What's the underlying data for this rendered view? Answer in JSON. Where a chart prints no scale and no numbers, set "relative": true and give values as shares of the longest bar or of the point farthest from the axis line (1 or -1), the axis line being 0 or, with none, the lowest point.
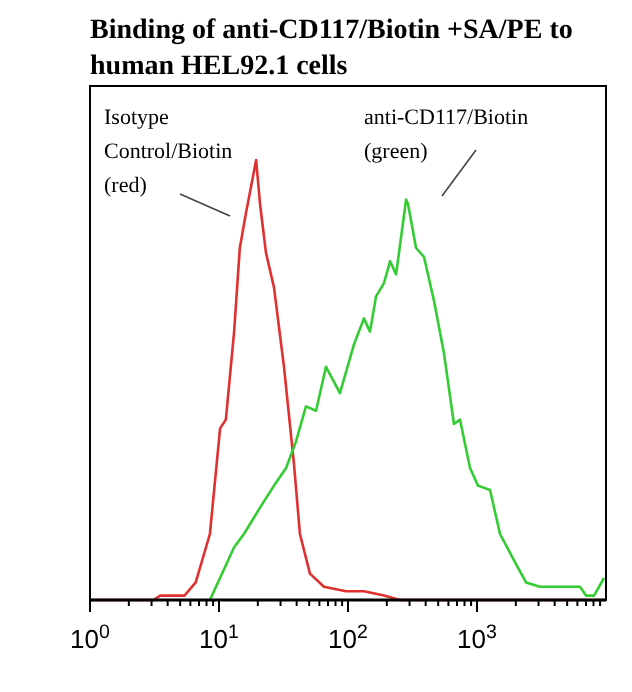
{
  "chart_data": {
    "type": "line",
    "title": "Binding of anti-CD117/Biotin +SA/PE to\nhuman HEL92.1 cells",
    "relative": true,
    "log": "x",
    "xlim": [
      1,
      10000
    ],
    "xticks": [
      {
        "value": 1,
        "label": "10$^{0}$"
      },
      {
        "value": 2,
        "label": null
      },
      {
        "value": 3,
        "label": null
      },
      {
        "value": 4,
        "label": null
      },
      {
        "value": 5,
        "label": null
      },
      {
        "value": 6,
        "label": null
      },
      {
        "value": 7,
        "label": null
      },
      {
        "value": 8,
        "label": null
      },
      {
        "value": 9,
        "label": null
      },
      {
        "value": 10,
        "label": "10$^{1}$"
      },
      {
        "value": 20,
        "label": null
      },
      {
        "value": 30,
        "label": null
      },
      {
        "value": 40,
        "label": null
      },
      {
        "value": 50,
        "label": null
      },
      {
        "value": 60,
        "label": null
      },
      {
        "value": 70,
        "label": null
      },
      {
        "value": 80,
        "label": null
      },
      {
        "value": 90,
        "label": null
      },
      {
        "value": 100,
        "label": "10$^{2}$"
      },
      {
        "value": 200,
        "label": null
      },
      {
        "value": 300,
        "label": null
      },
      {
        "value": 400,
        "label": null
      },
      {
        "value": 500,
        "label": null
      },
      {
        "value": 600,
        "label": null
      },
      {
        "value": 700,
        "label": null
      },
      {
        "value": 800,
        "label": null
      },
      {
        "value": 900,
        "label": null
      },
      {
        "value": 1000,
        "label": "10$^{3}$"
      },
      {
        "value": 2000,
        "label": null
      },
      {
        "value": 3000,
        "label": null
      },
      {
        "value": 4000,
        "label": null
      },
      {
        "value": 5000,
        "label": null
      },
      {
        "value": 6000,
        "label": null
      },
      {
        "value": 7000,
        "label": null
      },
      {
        "value": 8000,
        "label": null
      },
      {
        "value": 9000,
        "label": null
      }
    ],
    "series": [
      {
        "color": "#e03030",
        "x": [
          1,
          3.1,
          3.5,
          5.4,
          6.6,
          8.5,
          10.2,
          11.3,
          13.1,
          14.5,
          16.2,
          18,
          19.4,
          20.8,
          23.1,
          26.7,
          31.9,
          38.1,
          42.4,
          50.7,
          65.1,
          96.4,
          133,
          190,
          253,
          10000
        ],
        "values": [
          0,
          0,
          0.01,
          0.01,
          0.04,
          0.15,
          0.39,
          0.41,
          0.61,
          0.8,
          0.88,
          0.95,
          1,
          0.9,
          0.79,
          0.71,
          0.53,
          0.31,
          0.15,
          0.06,
          0.03,
          0.02,
          0.02,
          0.01,
          0,
          0
        ]
      },
      {
        "color": "#33cc33",
        "x": [
          8.5,
          13.1,
          15.6,
          20.8,
          26.7,
          33.1,
          39.5,
          47.2,
          56.5,
          67.5,
          86.6,
          111,
          133,
          148,
          165,
          190,
          212,
          236,
          282,
          292,
          337,
          388,
          464,
          555,
          663,
          738,
          883,
          1018,
          1262,
          1508,
          1936,
          2399,
          3076,
          6284,
          7000,
          8075,
          9650
        ],
        "values": [
          0,
          0.12,
          0.15,
          0.21,
          0.26,
          0.3,
          0.36,
          0.44,
          0.43,
          0.53,
          0.47,
          0.58,
          0.64,
          0.61,
          0.69,
          0.72,
          0.77,
          0.74,
          0.91,
          0.9,
          0.8,
          0.78,
          0.68,
          0.56,
          0.4,
          0.41,
          0.3,
          0.26,
          0.25,
          0.15,
          0.09,
          0.04,
          0.03,
          0.03,
          0.01,
          0.01,
          0.05
        ]
      }
    ],
    "annotations": [
      "Isotype\nControl/Biotin\n(red)",
      "anti-CD117/Biotin\n(green)"
    ]
  }
}
